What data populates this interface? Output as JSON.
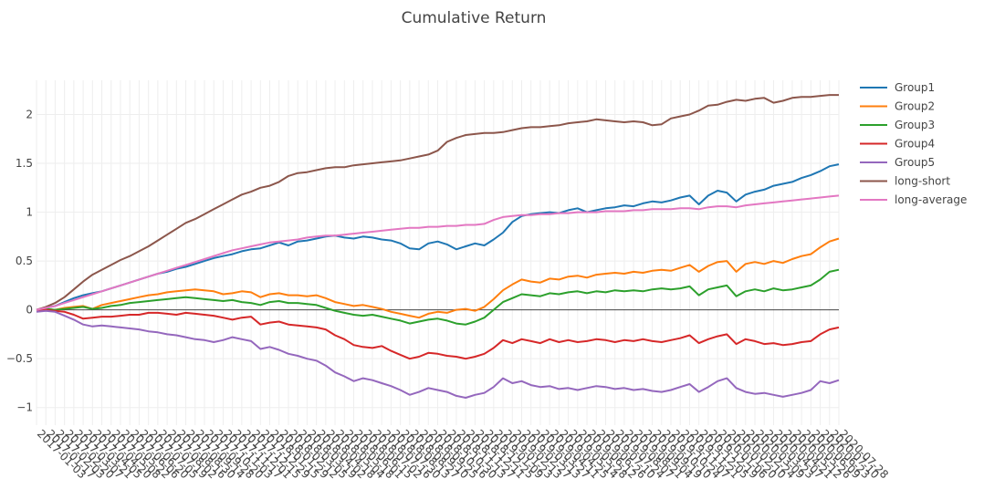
{
  "chart_data": {
    "type": "line",
    "title": "Cumulative Return",
    "xlabel": "",
    "ylabel": "",
    "ylim": [
      -1.18,
      2.35
    ],
    "yticks": [
      -1,
      -0.5,
      0,
      0.5,
      1,
      1.5,
      2
    ],
    "ytick_labels": [
      "−1",
      "−0.5",
      "0",
      "0.5",
      "1",
      "1.5",
      "2"
    ],
    "x_categories": [
      "2017-01-03",
      "2017-01-17",
      "2017-02-03",
      "2017-02-20",
      "2017-03-07",
      "2017-03-21",
      "2017-04-05",
      "2017-04-20",
      "2017-05-08",
      "2017-05-22",
      "2017-06-06",
      "2017-06-20",
      "2017-07-05",
      "2017-07-19",
      "2017-08-02",
      "2017-08-16",
      "2017-08-30",
      "2017-09-14",
      "2017-09-28",
      "2017-10-20",
      "2017-11-03",
      "2017-11-17",
      "2017-12-01",
      "2017-12-15",
      "2017-12-29",
      "2018-01-15",
      "2018-01-29",
      "2018-02-12",
      "2018-03-05",
      "2018-03-19",
      "2018-04-02",
      "2018-04-18",
      "2018-05-04",
      "2018-05-18",
      "2018-06-01",
      "2018-06-15",
      "2018-07-02",
      "2018-07-16",
      "2018-07-30",
      "2018-08-13",
      "2018-08-27",
      "2018-09-10",
      "2018-09-25",
      "2018-10-16",
      "2018-10-30",
      "2018-11-13",
      "2018-11-27",
      "2018-12-11",
      "2018-12-25",
      "2019-01-09",
      "2019-01-23",
      "2019-02-13",
      "2019-02-27",
      "2019-03-13",
      "2019-03-27",
      "2019-04-11",
      "2019-04-25",
      "2019-05-14",
      "2019-05-28",
      "2019-06-12",
      "2019-06-26",
      "2019-07-10",
      "2019-07-24",
      "2019-08-07",
      "2019-08-21",
      "2019-09-04",
      "2019-09-19",
      "2019-10-10",
      "2019-10-24",
      "2019-11-07",
      "2019-11-21",
      "2019-12-05",
      "2019-12-19",
      "2020-01-06",
      "2020-01-20",
      "2020-02-10",
      "2020-02-24",
      "2020-03-09",
      "2020-03-23",
      "2020-04-07",
      "2020-04-21",
      "2020-05-12",
      "2020-05-26",
      "2020-06-09",
      "2020-06-23",
      "2020-07-10",
      "2020-07-28"
    ],
    "legend_position": "top-right",
    "grid": true,
    "zero_line": true,
    "series": [
      {
        "name": "Group1",
        "color": "#1f77b4",
        "values": [
          0.0,
          0.02,
          0.04,
          0.08,
          0.12,
          0.15,
          0.17,
          0.19,
          0.22,
          0.25,
          0.28,
          0.31,
          0.34,
          0.37,
          0.39,
          0.42,
          0.44,
          0.47,
          0.5,
          0.53,
          0.55,
          0.57,
          0.6,
          0.62,
          0.63,
          0.66,
          0.69,
          0.66,
          0.7,
          0.71,
          0.73,
          0.75,
          0.76,
          0.74,
          0.73,
          0.75,
          0.74,
          0.72,
          0.71,
          0.68,
          0.63,
          0.62,
          0.68,
          0.7,
          0.67,
          0.62,
          0.65,
          0.68,
          0.66,
          0.72,
          0.79,
          0.9,
          0.96,
          0.98,
          0.99,
          1.0,
          0.99,
          1.02,
          1.04,
          1.0,
          1.02,
          1.04,
          1.05,
          1.07,
          1.06,
          1.09,
          1.11,
          1.1,
          1.12,
          1.15,
          1.17,
          1.08,
          1.17,
          1.22,
          1.2,
          1.11,
          1.18,
          1.21,
          1.23,
          1.27,
          1.29,
          1.31,
          1.35,
          1.38,
          1.42,
          1.47,
          1.49
        ]
      },
      {
        "name": "Group2",
        "color": "#ff7f0e",
        "values": [
          0.0,
          0.01,
          0.0,
          0.02,
          0.03,
          0.04,
          0.01,
          0.05,
          0.07,
          0.09,
          0.11,
          0.13,
          0.15,
          0.16,
          0.18,
          0.19,
          0.2,
          0.21,
          0.2,
          0.19,
          0.16,
          0.17,
          0.19,
          0.18,
          0.13,
          0.16,
          0.17,
          0.15,
          0.15,
          0.14,
          0.15,
          0.12,
          0.08,
          0.06,
          0.04,
          0.05,
          0.03,
          0.01,
          -0.02,
          -0.04,
          -0.06,
          -0.08,
          -0.04,
          -0.02,
          -0.03,
          0.0,
          0.01,
          -0.01,
          0.03,
          0.11,
          0.2,
          0.26,
          0.31,
          0.29,
          0.28,
          0.32,
          0.31,
          0.34,
          0.35,
          0.33,
          0.36,
          0.37,
          0.38,
          0.37,
          0.39,
          0.38,
          0.4,
          0.41,
          0.4,
          0.43,
          0.46,
          0.39,
          0.45,
          0.49,
          0.5,
          0.39,
          0.47,
          0.49,
          0.47,
          0.5,
          0.48,
          0.52,
          0.55,
          0.57,
          0.64,
          0.7,
          0.73
        ]
      },
      {
        "name": "Group3",
        "color": "#2ca02c",
        "values": [
          0.0,
          0.01,
          0.0,
          0.01,
          0.02,
          0.03,
          0.01,
          0.02,
          0.04,
          0.05,
          0.07,
          0.08,
          0.09,
          0.1,
          0.11,
          0.12,
          0.13,
          0.12,
          0.11,
          0.1,
          0.09,
          0.1,
          0.08,
          0.07,
          0.05,
          0.08,
          0.09,
          0.07,
          0.07,
          0.06,
          0.05,
          0.02,
          -0.01,
          -0.03,
          -0.05,
          -0.06,
          -0.05,
          -0.07,
          -0.09,
          -0.11,
          -0.14,
          -0.12,
          -0.1,
          -0.09,
          -0.11,
          -0.14,
          -0.15,
          -0.12,
          -0.08,
          0.0,
          0.08,
          0.12,
          0.16,
          0.15,
          0.14,
          0.17,
          0.16,
          0.18,
          0.19,
          0.17,
          0.19,
          0.18,
          0.2,
          0.19,
          0.2,
          0.19,
          0.21,
          0.22,
          0.21,
          0.22,
          0.24,
          0.15,
          0.21,
          0.23,
          0.25,
          0.14,
          0.19,
          0.21,
          0.19,
          0.22,
          0.2,
          0.21,
          0.23,
          0.25,
          0.31,
          0.39,
          0.41
        ]
      },
      {
        "name": "Group4",
        "color": "#d62728",
        "values": [
          0.0,
          0.0,
          -0.01,
          -0.02,
          -0.05,
          -0.09,
          -0.08,
          -0.07,
          -0.07,
          -0.06,
          -0.05,
          -0.05,
          -0.03,
          -0.03,
          -0.04,
          -0.05,
          -0.03,
          -0.04,
          -0.05,
          -0.06,
          -0.08,
          -0.1,
          -0.08,
          -0.07,
          -0.15,
          -0.13,
          -0.12,
          -0.15,
          -0.16,
          -0.17,
          -0.18,
          -0.2,
          -0.26,
          -0.3,
          -0.36,
          -0.38,
          -0.39,
          -0.37,
          -0.42,
          -0.46,
          -0.5,
          -0.48,
          -0.44,
          -0.45,
          -0.47,
          -0.48,
          -0.5,
          -0.48,
          -0.45,
          -0.39,
          -0.31,
          -0.34,
          -0.3,
          -0.32,
          -0.34,
          -0.3,
          -0.33,
          -0.31,
          -0.33,
          -0.32,
          -0.3,
          -0.31,
          -0.33,
          -0.31,
          -0.32,
          -0.3,
          -0.32,
          -0.33,
          -0.31,
          -0.29,
          -0.26,
          -0.34,
          -0.3,
          -0.27,
          -0.25,
          -0.35,
          -0.3,
          -0.32,
          -0.35,
          -0.34,
          -0.36,
          -0.35,
          -0.33,
          -0.32,
          -0.25,
          -0.2,
          -0.18
        ]
      },
      {
        "name": "Group5",
        "color": "#9467bd",
        "values": [
          -0.02,
          -0.01,
          -0.02,
          -0.06,
          -0.1,
          -0.15,
          -0.17,
          -0.16,
          -0.17,
          -0.18,
          -0.19,
          -0.2,
          -0.22,
          -0.23,
          -0.25,
          -0.26,
          -0.28,
          -0.3,
          -0.31,
          -0.33,
          -0.31,
          -0.28,
          -0.3,
          -0.32,
          -0.4,
          -0.38,
          -0.41,
          -0.45,
          -0.47,
          -0.5,
          -0.52,
          -0.57,
          -0.64,
          -0.68,
          -0.73,
          -0.7,
          -0.72,
          -0.75,
          -0.78,
          -0.82,
          -0.87,
          -0.84,
          -0.8,
          -0.82,
          -0.84,
          -0.88,
          -0.9,
          -0.87,
          -0.85,
          -0.79,
          -0.7,
          -0.75,
          -0.73,
          -0.77,
          -0.79,
          -0.78,
          -0.81,
          -0.8,
          -0.82,
          -0.8,
          -0.78,
          -0.79,
          -0.81,
          -0.8,
          -0.82,
          -0.81,
          -0.83,
          -0.84,
          -0.82,
          -0.79,
          -0.76,
          -0.84,
          -0.79,
          -0.73,
          -0.7,
          -0.8,
          -0.84,
          -0.86,
          -0.85,
          -0.87,
          -0.89,
          -0.87,
          -0.85,
          -0.82,
          -0.73,
          -0.75,
          -0.72
        ]
      },
      {
        "name": "long-short",
        "color": "#8c564b",
        "values": [
          0.0,
          0.03,
          0.07,
          0.13,
          0.21,
          0.29,
          0.36,
          0.41,
          0.46,
          0.51,
          0.55,
          0.6,
          0.65,
          0.71,
          0.77,
          0.83,
          0.89,
          0.93,
          0.98,
          1.03,
          1.08,
          1.13,
          1.18,
          1.21,
          1.25,
          1.27,
          1.31,
          1.37,
          1.4,
          1.41,
          1.43,
          1.45,
          1.46,
          1.46,
          1.48,
          1.49,
          1.5,
          1.51,
          1.52,
          1.53,
          1.55,
          1.57,
          1.59,
          1.63,
          1.72,
          1.76,
          1.79,
          1.8,
          1.81,
          1.81,
          1.82,
          1.84,
          1.86,
          1.87,
          1.87,
          1.88,
          1.89,
          1.91,
          1.92,
          1.93,
          1.95,
          1.94,
          1.93,
          1.92,
          1.93,
          1.92,
          1.89,
          1.9,
          1.96,
          1.98,
          2.0,
          2.04,
          2.09,
          2.1,
          2.13,
          2.15,
          2.14,
          2.16,
          2.17,
          2.12,
          2.14,
          2.17,
          2.18,
          2.18,
          2.19,
          2.2,
          2.2
        ]
      },
      {
        "name": "long-average",
        "color": "#e377c2",
        "values": [
          0.0,
          0.02,
          0.04,
          0.07,
          0.1,
          0.13,
          0.16,
          0.19,
          0.22,
          0.25,
          0.28,
          0.31,
          0.34,
          0.37,
          0.4,
          0.43,
          0.46,
          0.49,
          0.52,
          0.55,
          0.58,
          0.61,
          0.63,
          0.65,
          0.67,
          0.69,
          0.7,
          0.71,
          0.72,
          0.74,
          0.75,
          0.76,
          0.76,
          0.77,
          0.78,
          0.79,
          0.8,
          0.81,
          0.82,
          0.83,
          0.84,
          0.84,
          0.85,
          0.85,
          0.86,
          0.86,
          0.87,
          0.87,
          0.88,
          0.92,
          0.95,
          0.96,
          0.97,
          0.97,
          0.98,
          0.98,
          0.99,
          0.99,
          1.0,
          1.0,
          1.0,
          1.01,
          1.01,
          1.01,
          1.02,
          1.02,
          1.03,
          1.03,
          1.03,
          1.04,
          1.04,
          1.03,
          1.05,
          1.06,
          1.06,
          1.05,
          1.07,
          1.08,
          1.09,
          1.1,
          1.11,
          1.12,
          1.13,
          1.14,
          1.15,
          1.16,
          1.17
        ]
      }
    ]
  }
}
